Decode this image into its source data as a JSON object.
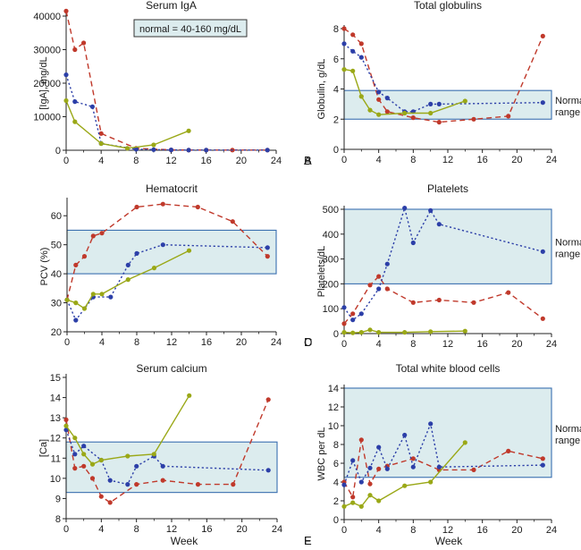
{
  "figure_note": "normal = 40-160 mg/dL",
  "xlabel": "Week",
  "normal_range_label": [
    "Normal",
    "range"
  ],
  "chart_data": [
    {
      "id": "A",
      "type": "line",
      "title": "Serum IgA",
      "ylabel": "[IgA], mg/dL",
      "xlim": [
        0,
        24
      ],
      "ylim": [
        0,
        40000
      ],
      "xticks": [
        "0",
        "4",
        "8",
        "12",
        "16",
        "20",
        "24"
      ],
      "yticks": [
        "0",
        "10000",
        "20000",
        "30000",
        "40000"
      ],
      "band": null,
      "series": [
        {
          "name": "red",
          "color": "#c0392b",
          "style": "dashed",
          "points": [
            [
              0,
              41500
            ],
            [
              1,
              30000
            ],
            [
              2,
              32000
            ],
            [
              4,
              5000
            ],
            [
              8,
              600
            ],
            [
              12,
              100
            ],
            [
              14,
              50
            ],
            [
              16,
              50
            ],
            [
              19,
              50
            ],
            [
              23,
              50
            ]
          ]
        },
        {
          "name": "blue",
          "color": "#2c3fa8",
          "style": "dotted",
          "points": [
            [
              0,
              22500
            ],
            [
              1,
              14500
            ],
            [
              3,
              13000
            ],
            [
              4,
              2000
            ],
            [
              8,
              300
            ],
            [
              10,
              200
            ],
            [
              12,
              100
            ],
            [
              14,
              50
            ],
            [
              16,
              50
            ],
            [
              23,
              50
            ]
          ]
        },
        {
          "name": "green",
          "color": "#9aa817",
          "style": "solid",
          "points": [
            [
              0,
              14800
            ],
            [
              1,
              8500
            ],
            [
              4,
              2000
            ],
            [
              7,
              600
            ],
            [
              10,
              1600
            ],
            [
              14,
              5800
            ]
          ]
        }
      ]
    },
    {
      "id": "B",
      "type": "line",
      "title": "Total globulins",
      "ylabel": "Globulin, g/dL",
      "xlim": [
        0,
        24
      ],
      "ylim": [
        0,
        8
      ],
      "xticks": [
        "0",
        "4",
        "8",
        "12",
        "16",
        "20",
        "24"
      ],
      "yticks": [
        "0",
        "2",
        "4",
        "6",
        "8"
      ],
      "band": [
        2,
        3.9
      ],
      "band_label": true,
      "series": [
        {
          "name": "red",
          "color": "#c0392b",
          "style": "dashed",
          "points": [
            [
              0,
              8
            ],
            [
              1,
              7.6
            ],
            [
              2,
              7
            ],
            [
              4,
              3.3
            ],
            [
              5,
              2.5
            ],
            [
              8,
              2.1
            ],
            [
              11,
              1.8
            ],
            [
              15,
              2
            ],
            [
              19,
              2.2
            ],
            [
              23,
              7.5
            ]
          ]
        },
        {
          "name": "blue",
          "color": "#2c3fa8",
          "style": "dotted",
          "points": [
            [
              0,
              7
            ],
            [
              1,
              6.5
            ],
            [
              2,
              6.1
            ],
            [
              4,
              3.8
            ],
            [
              5,
              3.4
            ],
            [
              7,
              2.5
            ],
            [
              8,
              2.5
            ],
            [
              10,
              3
            ],
            [
              11,
              3
            ],
            [
              23,
              3.1
            ]
          ]
        },
        {
          "name": "green",
          "color": "#9aa817",
          "style": "solid",
          "points": [
            [
              0,
              5.3
            ],
            [
              1,
              5.2
            ],
            [
              2,
              3.5
            ],
            [
              3,
              2.6
            ],
            [
              4,
              2.3
            ],
            [
              7,
              2.4
            ],
            [
              10,
              2.4
            ],
            [
              14,
              3.2
            ]
          ]
        }
      ]
    },
    {
      "id": "C",
      "type": "line",
      "title": "Hematocrit",
      "ylabel": "PCV (%)",
      "xlim": [
        0,
        24
      ],
      "ylim": [
        20,
        65
      ],
      "xticks": [
        "0",
        "4",
        "8",
        "12",
        "16",
        "20",
        "24"
      ],
      "yticks": [
        "20",
        "30",
        "40",
        "50",
        "60"
      ],
      "band": [
        40,
        55
      ],
      "band_label": false,
      "series": [
        {
          "name": "red",
          "color": "#c0392b",
          "style": "dashed",
          "points": [
            [
              0,
              31
            ],
            [
              1,
              43
            ],
            [
              2,
              46
            ],
            [
              3,
              53
            ],
            [
              4,
              54
            ],
            [
              8,
              63
            ],
            [
              11,
              64
            ],
            [
              15,
              63
            ],
            [
              19,
              58
            ],
            [
              23,
              46
            ]
          ]
        },
        {
          "name": "blue",
          "color": "#2c3fa8",
          "style": "dotted",
          "points": [
            [
              0,
              31
            ],
            [
              1,
              24
            ],
            [
              3,
              32
            ],
            [
              5,
              32
            ],
            [
              7,
              43
            ],
            [
              8,
              47
            ],
            [
              11,
              50
            ],
            [
              23,
              49
            ]
          ]
        },
        {
          "name": "green",
          "color": "#9aa817",
          "style": "solid",
          "points": [
            [
              0,
              31
            ],
            [
              1,
              30
            ],
            [
              2,
              28
            ],
            [
              3,
              33
            ],
            [
              4,
              33
            ],
            [
              7,
              38
            ],
            [
              10,
              42
            ],
            [
              14,
              48
            ]
          ]
        }
      ]
    },
    {
      "id": "D",
      "type": "line",
      "title": "Platelets",
      "ylabel": "Platelets/dL",
      "xlim": [
        0,
        24
      ],
      "ylim": [
        0,
        500
      ],
      "xticks": [
        "0",
        "4",
        "8",
        "12",
        "16",
        "20",
        "24"
      ],
      "yticks": [
        "0",
        "100",
        "200",
        "300",
        "400",
        "500"
      ],
      "band": [
        200,
        500
      ],
      "band_label": true,
      "series": [
        {
          "name": "red",
          "color": "#c0392b",
          "style": "dashed",
          "points": [
            [
              0,
              40
            ],
            [
              1,
              80
            ],
            [
              3,
              195
            ],
            [
              4,
              230
            ],
            [
              5,
              180
            ],
            [
              8,
              125
            ],
            [
              11,
              135
            ],
            [
              15,
              125
            ],
            [
              19,
              165
            ],
            [
              23,
              60
            ]
          ]
        },
        {
          "name": "blue",
          "color": "#2c3fa8",
          "style": "dotted",
          "points": [
            [
              0,
              105
            ],
            [
              1,
              55
            ],
            [
              2,
              80
            ],
            [
              4,
              180
            ],
            [
              5,
              280
            ],
            [
              7,
              505
            ],
            [
              8,
              365
            ],
            [
              10,
              495
            ],
            [
              11,
              440
            ],
            [
              23,
              330
            ]
          ]
        },
        {
          "name": "green",
          "color": "#9aa817",
          "style": "solid",
          "points": [
            [
              0,
              5
            ],
            [
              1,
              3
            ],
            [
              2,
              5
            ],
            [
              3,
              15
            ],
            [
              4,
              5
            ],
            [
              7,
              5
            ],
            [
              10,
              8
            ],
            [
              14,
              10
            ]
          ]
        }
      ]
    },
    {
      "id": "E",
      "type": "line",
      "title": "Serum calcium",
      "ylabel": "[Ca]",
      "xlim": [
        0,
        24
      ],
      "ylim": [
        8,
        15
      ],
      "xticks": [
        "0",
        "4",
        "8",
        "12",
        "16",
        "20",
        "24"
      ],
      "yticks": [
        "8",
        "9",
        "10",
        "11",
        "12",
        "13",
        "14",
        "15"
      ],
      "band": [
        9.3,
        11.8
      ],
      "band_label": false,
      "series": [
        {
          "name": "red",
          "color": "#c0392b",
          "style": "dashed",
          "points": [
            [
              0,
              12.9
            ],
            [
              1,
              10.5
            ],
            [
              2,
              10.6
            ],
            [
              3,
              10
            ],
            [
              4,
              9.1
            ],
            [
              5,
              8.8
            ],
            [
              8,
              9.7
            ],
            [
              11,
              9.9
            ],
            [
              15,
              9.7
            ],
            [
              19,
              9.7
            ],
            [
              23,
              13.9
            ]
          ]
        },
        {
          "name": "blue",
          "color": "#2c3fa8",
          "style": "dotted",
          "points": [
            [
              0,
              12.4
            ],
            [
              1,
              11.2
            ],
            [
              2,
              11.6
            ],
            [
              4,
              10.9
            ],
            [
              5,
              9.9
            ],
            [
              7,
              9.7
            ],
            [
              8,
              10.6
            ],
            [
              10,
              11.1
            ],
            [
              11,
              10.6
            ],
            [
              23,
              10.4
            ]
          ]
        },
        {
          "name": "green",
          "color": "#9aa817",
          "style": "solid",
          "points": [
            [
              0,
              12.6
            ],
            [
              1,
              12
            ],
            [
              2,
              11.2
            ],
            [
              3,
              10.7
            ],
            [
              4,
              10.9
            ],
            [
              7,
              11.1
            ],
            [
              10,
              11.2
            ],
            [
              14,
              14.1
            ]
          ]
        }
      ]
    },
    {
      "id": "F",
      "type": "line",
      "title": "Total white blood cells",
      "ylabel": "WBC per dL",
      "xlim": [
        0,
        24
      ],
      "ylim": [
        0,
        14
      ],
      "xticks": [
        "0",
        "4",
        "8",
        "12",
        "16",
        "20",
        "24"
      ],
      "yticks": [
        "0",
        "2",
        "4",
        "6",
        "8",
        "10",
        "12",
        "14"
      ],
      "band": [
        4.5,
        14.5
      ],
      "band_label": true,
      "series": [
        {
          "name": "red",
          "color": "#c0392b",
          "style": "dashed",
          "points": [
            [
              0,
              4
            ],
            [
              1,
              2.4
            ],
            [
              2,
              8.5
            ],
            [
              3,
              3.8
            ],
            [
              4,
              5.4
            ],
            [
              5,
              5.7
            ],
            [
              8,
              6.5
            ],
            [
              11,
              5.3
            ],
            [
              15,
              5.3
            ],
            [
              19,
              7.3
            ],
            [
              23,
              6.5
            ]
          ]
        },
        {
          "name": "blue",
          "color": "#2c3fa8",
          "style": "dotted",
          "points": [
            [
              0,
              3.7
            ],
            [
              1,
              6.3
            ],
            [
              2,
              4
            ],
            [
              3,
              5.5
            ],
            [
              4,
              7.7
            ],
            [
              5,
              5.4
            ],
            [
              7,
              9
            ],
            [
              8,
              5.6
            ],
            [
              10,
              10.2
            ],
            [
              11,
              5.6
            ],
            [
              23,
              5.8
            ]
          ]
        },
        {
          "name": "green",
          "color": "#9aa817",
          "style": "solid",
          "points": [
            [
              0,
              1.4
            ],
            [
              1,
              1.8
            ],
            [
              2,
              1.4
            ],
            [
              3,
              2.6
            ],
            [
              4,
              2
            ],
            [
              7,
              3.6
            ],
            [
              10,
              4
            ],
            [
              14,
              8.2
            ]
          ]
        }
      ]
    }
  ]
}
